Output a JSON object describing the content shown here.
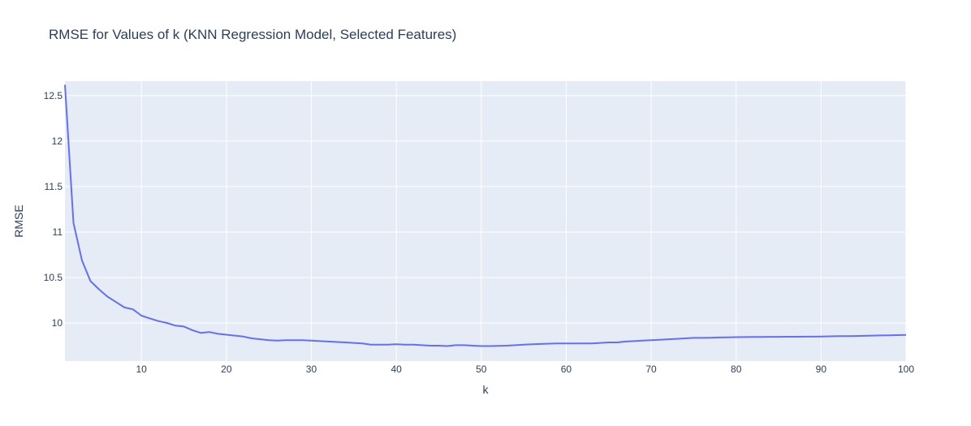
{
  "chart_data": {
    "type": "line",
    "title": "RMSE for Values of k (KNN Regression Model, Selected Features)",
    "xlabel": "k",
    "ylabel": "RMSE",
    "xlim": [
      1,
      100
    ],
    "ylim": [
      9.58,
      12.66
    ],
    "xticks": [
      10,
      20,
      30,
      40,
      50,
      60,
      70,
      80,
      90,
      100
    ],
    "yticks": [
      10,
      10.5,
      11,
      11.5,
      12,
      12.5
    ],
    "ytick_labels": [
      "10",
      "10.5",
      "11",
      "11.5",
      "12",
      "12.5"
    ],
    "grid": true,
    "colors": {
      "plot_bg": "#e5ecf6",
      "grid": "#ffffff",
      "line": "#636efa",
      "text": "#2a3f5f"
    },
    "series": [
      {
        "x": [
          1,
          2,
          3,
          4,
          5,
          6,
          7,
          8,
          9,
          10,
          11,
          12,
          13,
          14,
          15,
          16,
          17,
          18,
          19,
          20,
          21,
          22,
          23,
          24,
          25,
          26,
          27,
          28,
          29,
          30,
          31,
          32,
          33,
          34,
          35,
          36,
          37,
          38,
          39,
          40,
          41,
          42,
          43,
          44,
          45,
          46,
          47,
          48,
          49,
          50,
          51,
          52,
          53,
          54,
          55,
          56,
          57,
          58,
          59,
          60,
          61,
          62,
          63,
          64,
          65,
          66,
          67,
          68,
          69,
          70,
          71,
          72,
          73,
          74,
          75,
          76,
          77,
          78,
          79,
          80,
          81,
          82,
          83,
          84,
          85,
          86,
          87,
          88,
          89,
          90,
          91,
          92,
          93,
          94,
          95,
          96,
          97,
          98,
          99,
          100
        ],
        "values": [
          12.62,
          11.1,
          10.69,
          10.46,
          10.37,
          10.29,
          10.23,
          10.17,
          10.15,
          10.08,
          10.05,
          10.02,
          10.0,
          9.97,
          9.96,
          9.92,
          9.89,
          9.9,
          9.88,
          9.87,
          9.86,
          9.85,
          9.83,
          9.82,
          9.81,
          9.805,
          9.81,
          9.81,
          9.81,
          9.805,
          9.8,
          9.795,
          9.79,
          9.785,
          9.78,
          9.775,
          9.76,
          9.76,
          9.76,
          9.765,
          9.76,
          9.76,
          9.755,
          9.75,
          9.75,
          9.745,
          9.755,
          9.755,
          9.75,
          9.745,
          9.745,
          9.747,
          9.75,
          9.755,
          9.76,
          9.765,
          9.768,
          9.772,
          9.775,
          9.775,
          9.775,
          9.775,
          9.775,
          9.78,
          9.785,
          9.785,
          9.795,
          9.8,
          9.805,
          9.81,
          9.815,
          9.82,
          9.825,
          9.83,
          9.835,
          9.835,
          9.837,
          9.84,
          9.842,
          9.843,
          9.844,
          9.845,
          9.846,
          9.847,
          9.847,
          9.848,
          9.848,
          9.849,
          9.849,
          9.85,
          9.852,
          9.855,
          9.855,
          9.856,
          9.858,
          9.86,
          9.862,
          9.864,
          9.866,
          9.868
        ]
      }
    ]
  }
}
